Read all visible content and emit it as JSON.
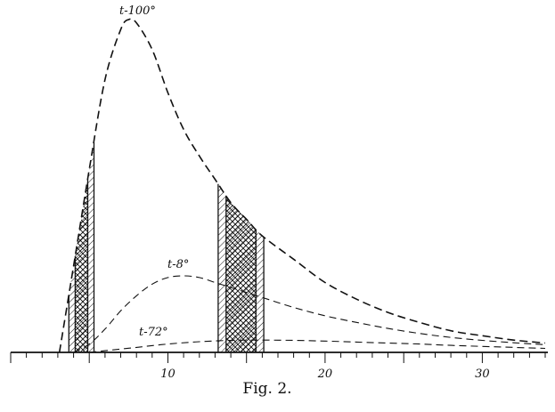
{
  "chart_data": {
    "type": "line",
    "title": "",
    "caption": "Fig. 2.",
    "xlabel": "",
    "ylabel": "",
    "xlim": [
      0,
      34
    ],
    "ylim": [
      0,
      100
    ],
    "grid": false,
    "x_tick_labels": [
      "10",
      "20",
      "30"
    ],
    "x_tick_values": [
      10,
      20,
      30
    ],
    "series": [
      {
        "name": "t-100°",
        "x": [
          3.1,
          4.0,
          5.0,
          6.0,
          7.0,
          7.5,
          8.0,
          9.0,
          10.0,
          11.0,
          12.0,
          13.0,
          14.0,
          15.0,
          16.0,
          18.0,
          20.0,
          22.0,
          24.0,
          26.0,
          28.0,
          30.0,
          32.0,
          34.0
        ],
        "y": [
          0,
          26,
          55,
          82,
          97,
          100,
          99,
          91,
          78,
          67,
          59,
          52,
          45,
          40,
          35,
          28,
          21,
          16,
          12,
          9,
          6.5,
          5,
          3.7,
          2.8
        ]
      },
      {
        "name": "t-8°",
        "x": [
          4.0,
          5.0,
          6.0,
          7.0,
          8.0,
          9.0,
          10.0,
          11.0,
          12.0,
          13.0,
          14.0,
          15.0,
          16.0,
          18.0,
          20.0,
          22.0,
          24.0,
          26.0,
          28.0,
          30.0,
          32.0,
          34.0
        ],
        "y": [
          0,
          2.5,
          7,
          12.5,
          17,
          20.5,
          22.5,
          23,
          22.5,
          21,
          19.5,
          18,
          16.5,
          13.5,
          11,
          9,
          7.2,
          5.7,
          4.5,
          3.6,
          2.9,
          2.3
        ]
      },
      {
        "name": "t-72°",
        "x": [
          5.0,
          6.0,
          8.0,
          10.0,
          12.0,
          14.0,
          16.0,
          18.0,
          20.0,
          22.0,
          24.0,
          26.0,
          28.0,
          30.0,
          32.0,
          34.0
        ],
        "y": [
          0,
          0.5,
          1.5,
          2.5,
          3.2,
          3.6,
          3.7,
          3.6,
          3.4,
          3.1,
          2.8,
          2.5,
          2.1,
          1.8,
          1.5,
          1.2
        ]
      }
    ],
    "shaded_bands": [
      {
        "x_outer": [
          3.7,
          5.3
        ],
        "x_inner": [
          4.1,
          4.9
        ]
      },
      {
        "x_outer": [
          13.2,
          16.1
        ],
        "x_inner": [
          13.7,
          15.6
        ]
      }
    ]
  }
}
